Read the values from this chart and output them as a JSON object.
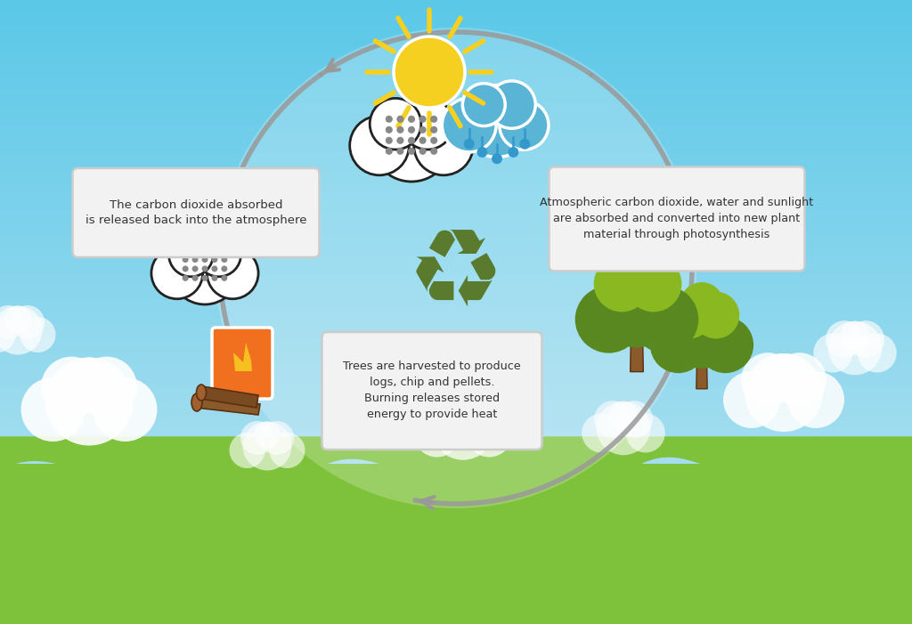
{
  "bg_sky_top": "#5bc8e8",
  "bg_sky_bottom": "#a8dff0",
  "bg_grass_color": "#7dc23a",
  "circle_alpha": 0.22,
  "recycle_color": "#5a7a2e",
  "arrow_color": "#999999",
  "box_bg": "#f0f0f0",
  "box_edge": "#cccccc",
  "text_color": "#333333",
  "text1": "The carbon dioxide absorbed\nis released back into the atmosphere",
  "text2": "Atmospheric carbon dioxide, water and sunlight\nare absorbed and converted into new plant\nmaterial through photosynthesis",
  "text3": "Trees are harvested to produce\nlogs, chip and pellets.\nBurning releases stored\nenergy to provide heat",
  "sun_color": "#f5d020",
  "fire_orange": "#f07020",
  "fire_yellow": "#f5c020",
  "tree_green1": "#8ab820",
  "tree_green2": "#5a8820",
  "tree_brown": "#8b5a2b"
}
